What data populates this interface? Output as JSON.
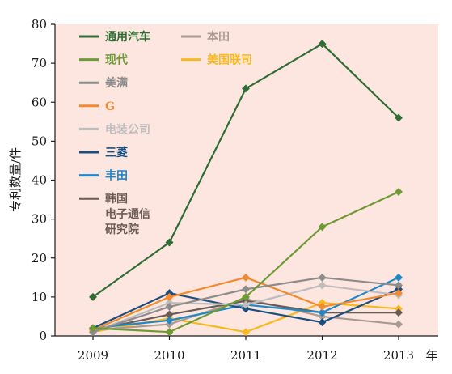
{
  "chart_data": {
    "type": "line",
    "x": [
      "2009",
      "2010",
      "2011",
      "2012",
      "2013"
    ],
    "xlabel_unit": "年",
    "ylabel": "专利数量/件",
    "ylim": [
      0,
      80
    ],
    "yticks": [
      0,
      10,
      20,
      30,
      40,
      50,
      60,
      70,
      80
    ],
    "plot_background": "#fde6df",
    "grid": false,
    "legend_position": "upper-left, inside plot, two columns",
    "series": [
      {
        "name": "通用汽车",
        "color": "#2e6e34",
        "marker": "diamond",
        "values": [
          10,
          24,
          63.5,
          75,
          56
        ]
      },
      {
        "name": "现代",
        "color": "#6e9a35",
        "marker": "diamond",
        "values": [
          2,
          1,
          10,
          28,
          37
        ]
      },
      {
        "name": "美满",
        "color": "#8c8c8c",
        "marker": "diamond",
        "values": [
          1,
          7.5,
          12,
          15,
          13
        ]
      },
      {
        "name": "G",
        "color": "#f28a30",
        "marker": "diamond",
        "values": [
          1.5,
          10,
          15,
          7.5,
          11
        ]
      },
      {
        "name": "电装公司",
        "color": "#bdbdbd",
        "marker": "diamond",
        "values": [
          1,
          8.5,
          8,
          13,
          10.5
        ]
      },
      {
        "name": "三菱",
        "color": "#1a4f80",
        "marker": "diamond",
        "values": [
          2,
          11,
          7,
          3.5,
          12
        ]
      },
      {
        "name": "丰田",
        "color": "#1f88c8",
        "marker": "diamond",
        "values": [
          2,
          4,
          8,
          6,
          15
        ]
      },
      {
        "name": "韩国电子通信研究院",
        "legend_lines": [
          "韩国",
          "电子通信",
          "研究院"
        ],
        "color": "#6b5b55",
        "marker": "diamond",
        "values": [
          1.5,
          5.5,
          9,
          6,
          6
        ]
      },
      {
        "name": "本田",
        "color": "#a99a92",
        "marker": "diamond",
        "values": [
          1.5,
          3,
          9.5,
          5,
          3
        ]
      },
      {
        "name": "美国联合技术公司",
        "legend_text": "美国联司",
        "color": "#f7b820",
        "marker": "diamond",
        "values": [
          1,
          4.5,
          1,
          8.5,
          7
        ]
      }
    ]
  }
}
